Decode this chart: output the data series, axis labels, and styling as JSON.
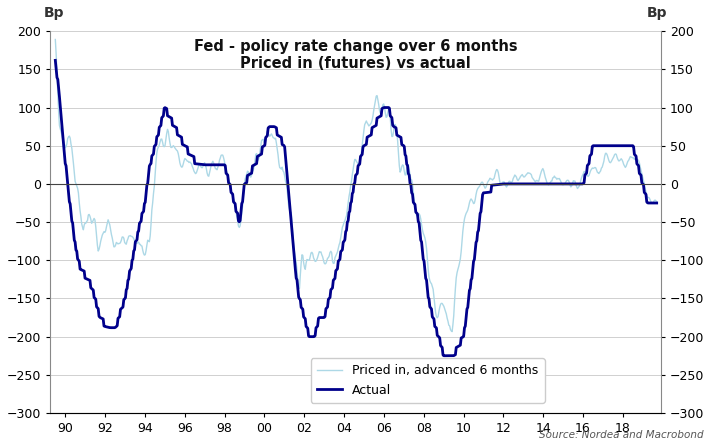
{
  "title_line1": "Fed - policy rate change over 6 months",
  "title_line2": "Priced in (futures) vs actual",
  "ylabel_left": "Bp",
  "ylabel_right": "Bp",
  "source": "Source: Nordea and Macrobond",
  "legend_label1": "Priced in, advanced 6 months",
  "legend_label2": "Actual",
  "color_priced": "#add8e6",
  "color_actual": "#00008B",
  "ylim": [
    -300,
    200
  ],
  "yticks": [
    -300,
    -250,
    -200,
    -150,
    -100,
    -50,
    0,
    50,
    100,
    150,
    200
  ],
  "xtick_labels": [
    "90",
    "92",
    "94",
    "96",
    "98",
    "00",
    "02",
    "04",
    "06",
    "08",
    "10",
    "12",
    "14",
    "16",
    "18"
  ],
  "background_color": "#ffffff",
  "grid_color": "#d0d0d0",
  "actual_knots_t": [
    1989.5,
    1989.7,
    1989.83,
    1990.0,
    1990.25,
    1990.5,
    1990.75,
    1991.0,
    1991.25,
    1991.5,
    1991.75,
    1992.0,
    1992.25,
    1992.5,
    1993.0,
    1993.5,
    1994.0,
    1994.25,
    1994.5,
    1994.75,
    1995.0,
    1995.5,
    1996.0,
    1996.5,
    1997.0,
    1997.5,
    1998.0,
    1998.5,
    1998.75,
    1999.0,
    1999.5,
    2000.0,
    2000.25,
    2000.5,
    2001.0,
    2001.25,
    2001.5,
    2001.75,
    2002.0,
    2002.25,
    2002.5,
    2002.75,
    2003.0,
    2003.25,
    2003.5,
    2004.0,
    2004.5,
    2005.0,
    2005.5,
    2006.0,
    2006.25,
    2006.5,
    2007.0,
    2007.5,
    2007.75,
    2008.0,
    2008.25,
    2008.5,
    2008.75,
    2009.0,
    2009.5,
    2010.0,
    2011.0,
    2012.0,
    2013.0,
    2014.0,
    2015.0,
    2015.5,
    2015.75,
    2016.0,
    2016.25,
    2016.5,
    2016.75,
    2017.0,
    2017.5,
    2018.0,
    2018.5,
    2018.75,
    2019.0,
    2019.25,
    2019.5
  ],
  "actual_knots_v": [
    160,
    120,
    80,
    30,
    -30,
    -80,
    -110,
    -120,
    -130,
    -150,
    -175,
    -185,
    -190,
    -190,
    -150,
    -80,
    -25,
    25,
    50,
    75,
    100,
    75,
    50,
    30,
    25,
    25,
    25,
    -25,
    -50,
    0,
    25,
    50,
    75,
    75,
    50,
    -25,
    -100,
    -150,
    -175,
    -200,
    -200,
    -175,
    -175,
    -150,
    -125,
    -75,
    0,
    50,
    75,
    100,
    100,
    75,
    50,
    -25,
    -50,
    -100,
    -150,
    -180,
    -200,
    -225,
    -225,
    -200,
    -10,
    0,
    0,
    0,
    0,
    0,
    0,
    0,
    25,
    50,
    50,
    50,
    50,
    50,
    50,
    25,
    0,
    -25,
    -25
  ],
  "priced_knots_t": [
    1989.5,
    1989.7,
    1990.0,
    1990.25,
    1990.5,
    1990.75,
    1991.0,
    1991.25,
    1991.5,
    1991.75,
    1992.0,
    1992.25,
    1992.5,
    1993.0,
    1993.5,
    1994.0,
    1994.25,
    1994.5,
    1994.75,
    1995.0,
    1995.25,
    1995.5,
    1996.0,
    1996.5,
    1997.0,
    1997.5,
    1998.0,
    1998.5,
    1998.75,
    1999.0,
    1999.5,
    2000.0,
    2000.25,
    2000.5,
    2000.75,
    2001.0,
    2001.25,
    2001.5,
    2001.75,
    2002.0,
    2002.25,
    2002.5,
    2002.75,
    2003.0,
    2003.25,
    2003.5,
    2004.0,
    2004.5,
    2005.0,
    2005.25,
    2005.5,
    2006.0,
    2006.25,
    2006.5,
    2007.0,
    2007.5,
    2007.75,
    2008.0,
    2008.25,
    2008.5,
    2008.75,
    2009.0,
    2009.5,
    2010.0,
    2010.5,
    2011.0,
    2012.0,
    2013.0,
    2014.0,
    2015.0,
    2015.5,
    2015.75,
    2016.0,
    2016.5,
    2017.0,
    2017.5,
    2018.0,
    2018.5,
    2019.0,
    2019.25,
    2019.5
  ],
  "priced_knots_v": [
    170,
    90,
    50,
    30,
    10,
    -10,
    -20,
    -40,
    -60,
    -80,
    -60,
    -50,
    -70,
    -75,
    -70,
    -80,
    -80,
    20,
    50,
    60,
    50,
    40,
    30,
    20,
    20,
    30,
    30,
    -30,
    -40,
    10,
    30,
    50,
    65,
    60,
    40,
    20,
    -30,
    -90,
    -130,
    -100,
    -90,
    -100,
    -90,
    -100,
    -90,
    -100,
    -50,
    30,
    50,
    80,
    100,
    100,
    100,
    70,
    30,
    -20,
    -50,
    -75,
    -110,
    -150,
    -175,
    -170,
    -175,
    -50,
    -20,
    5,
    5,
    5,
    5,
    0,
    5,
    5,
    10,
    20,
    25,
    30,
    30,
    30,
    15,
    -20,
    -30
  ]
}
